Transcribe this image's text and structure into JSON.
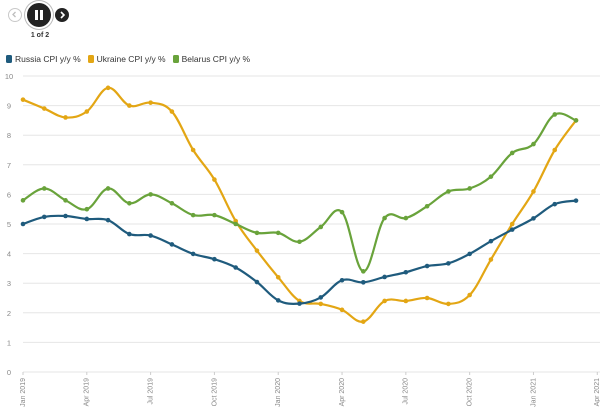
{
  "controls": {
    "prev": "chevron-left-icon",
    "pause": "pause-icon",
    "next": "chevron-right-icon",
    "pager": "1 of 2"
  },
  "colors": {
    "russia": "#1f5b7d",
    "ukraine": "#e3a614",
    "belarus": "#69a33b",
    "grid": "#e6e6e6",
    "axis_text": "#888888"
  },
  "chart_data": {
    "type": "line",
    "title": "",
    "xlabel": "",
    "ylabel": "",
    "ylim": [
      0,
      10
    ],
    "yticks": [
      "0",
      "1",
      "2",
      "3",
      "4",
      "5",
      "6",
      "7",
      "8",
      "9",
      "10"
    ],
    "xticks": [
      "Jan 2019",
      "Apr 2019",
      "Jul 2019",
      "Oct 2019",
      "Jan 2020",
      "Apr 2020",
      "Jul 2020",
      "Oct 2020",
      "Jan 2021",
      "Apr 2021"
    ],
    "grid": true,
    "legend_position": "top-left",
    "x": [
      "2019-01",
      "2019-02",
      "2019-03",
      "2019-04",
      "2019-05",
      "2019-06",
      "2019-07",
      "2019-08",
      "2019-09",
      "2019-10",
      "2019-11",
      "2019-12",
      "2020-01",
      "2020-02",
      "2020-03",
      "2020-04",
      "2020-05",
      "2020-06",
      "2020-07",
      "2020-08",
      "2020-09",
      "2020-10",
      "2020-11",
      "2020-12",
      "2021-01",
      "2021-02",
      "2021-03"
    ],
    "series": [
      {
        "name": "Russia CPI y/y %",
        "color": "#1f5b7d",
        "values": [
          5.0,
          5.24,
          5.27,
          5.17,
          5.13,
          4.66,
          4.61,
          4.31,
          3.99,
          3.81,
          3.53,
          3.04,
          2.42,
          2.31,
          2.52,
          3.1,
          3.03,
          3.21,
          3.37,
          3.58,
          3.67,
          3.99,
          4.42,
          4.81,
          5.19,
          5.67,
          5.79
        ]
      },
      {
        "name": "Ukraine CPI y/y %",
        "color": "#e3a614",
        "values": [
          9.2,
          8.9,
          8.6,
          8.8,
          9.6,
          9.0,
          9.1,
          8.8,
          7.5,
          6.5,
          5.1,
          4.1,
          3.2,
          2.4,
          2.3,
          2.1,
          1.7,
          2.4,
          2.4,
          2.5,
          2.3,
          2.6,
          3.8,
          5.0,
          6.1,
          7.5,
          8.5
        ]
      },
      {
        "name": "Belarus CPI y/y %",
        "color": "#69a33b",
        "values": [
          5.8,
          6.2,
          5.8,
          5.5,
          6.2,
          5.7,
          6.0,
          5.7,
          5.3,
          5.3,
          5.0,
          4.7,
          4.7,
          4.4,
          4.9,
          5.4,
          3.4,
          5.2,
          5.2,
          5.6,
          6.1,
          6.2,
          6.6,
          7.4,
          7.7,
          8.7,
          8.5
        ]
      }
    ]
  }
}
